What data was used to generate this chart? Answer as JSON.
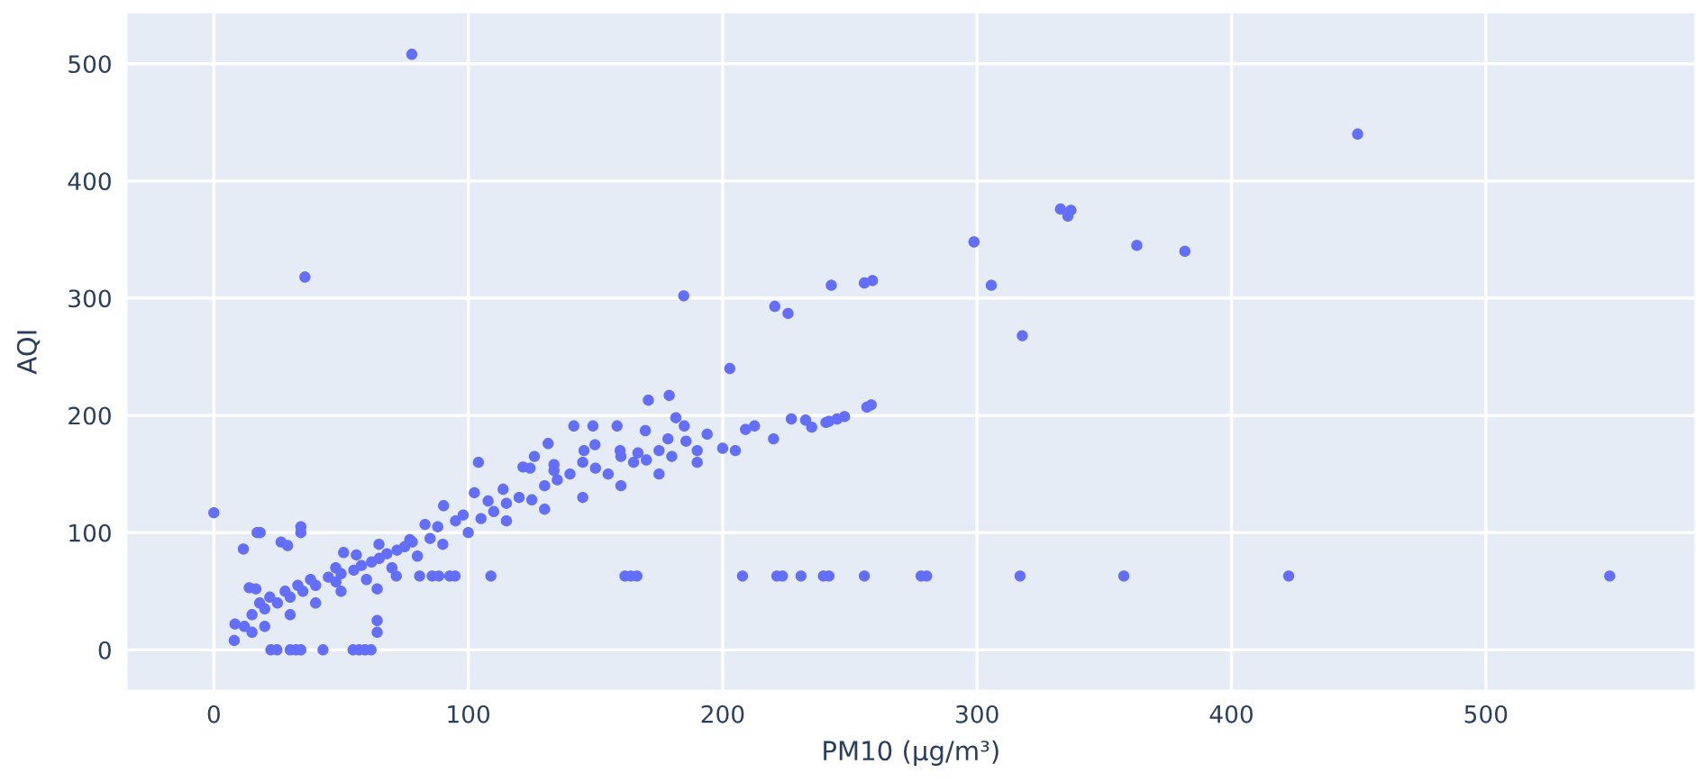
{
  "chart_data": {
    "type": "scatter",
    "xlabel": "PM10 (μg/m³)",
    "ylabel": "AQI",
    "x": [
      0,
      77.8,
      35.8,
      184.7,
      220.5,
      225.7,
      242.7,
      255.7,
      258.9,
      202.8,
      449.6,
      332.8,
      336.9,
      335.7,
      298.8,
      362.8,
      381.7,
      305.6,
      317.8,
      207.8,
      221.3,
      223.5,
      230.8,
      239.6,
      241.8,
      255.7,
      278,
      280.2,
      316.9,
      357.7,
      422.5,
      548.7,
      71.7,
      80.9,
      85.8,
      88.4,
      92.7,
      94.8,
      108.9,
      161.6,
      163.9,
      166.3,
      22.4,
      24.8,
      30,
      32.3,
      34.2,
      42.9,
      54.7,
      57.1,
      59.4,
      61.8,
      64.2,
      64.2,
      64.2,
      11.6,
      17,
      18.2,
      34.2,
      34.2,
      26.4,
      29,
      13.9,
      16.5,
      8.3,
      51,
      56,
      47.9,
      64.9,
      77,
      83,
      90.3,
      102.4,
      104,
      107.8,
      113.7,
      121.5,
      126,
      131.4,
      133.7,
      141.5,
      149,
      158.5,
      169.6,
      170.8,
      179,
      181.6,
      184.9,
      193.9,
      185.6,
      178.5,
      149.8,
      145.5,
      159.7,
      166.7,
      124.3,
      133.7,
      209,
      212.5,
      227,
      232.6,
      240.6,
      241.8,
      247.9,
      256.7,
      258.4,
      8,
      15,
      20,
      30,
      40,
      50,
      60,
      70,
      80,
      90,
      100,
      115,
      130,
      145,
      160,
      175,
      190,
      205,
      220,
      235,
      245,
      12,
      15,
      18,
      20,
      22,
      25,
      28,
      30,
      33,
      35,
      38,
      40,
      45,
      48,
      50,
      55,
      58,
      62,
      65,
      68,
      72,
      75,
      78,
      85,
      88,
      95,
      98,
      105,
      110,
      115,
      120,
      125,
      130,
      135,
      140,
      145,
      150,
      155,
      160,
      165,
      170,
      175,
      180,
      190,
      200
    ],
    "values": [
      117,
      508,
      318,
      302,
      293,
      287,
      311,
      313,
      315,
      240,
      440,
      376,
      375,
      370,
      348,
      345,
      340,
      311,
      268,
      63,
      63,
      63,
      63,
      63,
      63,
      63,
      63,
      63,
      63,
      63,
      63,
      63,
      63,
      63,
      63,
      63,
      63,
      63,
      63,
      63,
      63,
      63,
      0,
      0,
      0,
      0,
      0,
      0,
      0,
      0,
      0,
      0,
      52,
      25,
      15,
      86,
      100,
      100,
      105,
      100,
      92,
      89,
      53,
      52,
      22,
      83,
      81,
      70,
      90,
      94,
      107,
      123,
      134,
      160,
      127,
      137,
      156,
      165,
      176,
      158,
      191,
      191,
      191,
      187,
      213,
      217,
      198,
      191,
      184,
      178,
      180,
      175,
      170,
      170,
      168,
      155,
      153,
      188,
      191,
      197,
      196,
      194,
      195,
      199,
      207,
      209,
      8,
      15,
      20,
      30,
      40,
      50,
      60,
      70,
      80,
      90,
      100,
      110,
      120,
      130,
      140,
      150,
      160,
      170,
      180,
      190,
      197,
      20,
      30,
      40,
      35,
      45,
      40,
      50,
      45,
      55,
      50,
      60,
      55,
      62,
      58,
      65,
      68,
      72,
      75,
      78,
      82,
      85,
      88,
      92,
      95,
      105,
      110,
      115,
      112,
      118,
      125,
      130,
      128,
      140,
      145,
      150,
      160,
      155,
      150,
      165,
      160,
      162,
      170,
      165,
      170,
      172
    ],
    "color": "#636efa",
    "marker": "circle",
    "xlim": [
      -34,
      582
    ],
    "ylim": [
      -34,
      543
    ],
    "xticks": [
      0,
      100,
      200,
      300,
      400,
      500
    ],
    "yticks": [
      0,
      100,
      200,
      300,
      400,
      500
    ],
    "grid": true,
    "legend": false
  }
}
